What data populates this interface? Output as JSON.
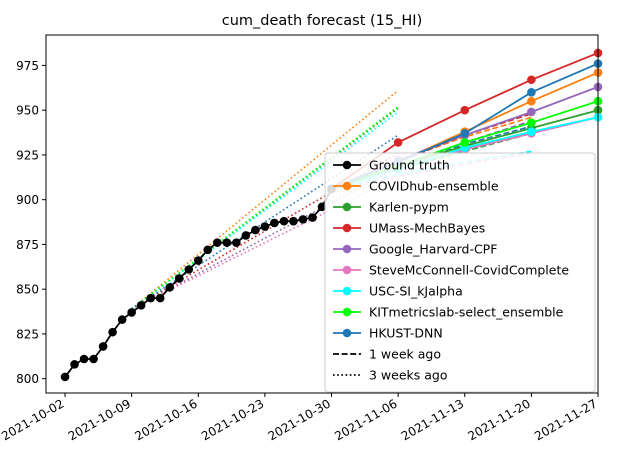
{
  "chart_data": {
    "type": "line",
    "title": "cum_death forecast (15_HI)",
    "xlabel": "",
    "ylabel": "",
    "x_type": "date",
    "xlim": [
      "2021-09-30",
      "2021-11-27"
    ],
    "ylim": [
      792,
      992
    ],
    "x_ticks": [
      "2021-10-02",
      "2021-10-09",
      "2021-10-16",
      "2021-10-23",
      "2021-10-30",
      "2021-11-06",
      "2021-11-13",
      "2021-11-20",
      "2021-11-27"
    ],
    "y_ticks": [
      800,
      825,
      850,
      875,
      900,
      925,
      950,
      975
    ],
    "grid": false,
    "legend_position": "lower-right",
    "ground_truth": {
      "name": "Ground truth",
      "color": "#000000",
      "x": [
        "2021-10-02",
        "2021-10-03",
        "2021-10-04",
        "2021-10-05",
        "2021-10-06",
        "2021-10-07",
        "2021-10-08",
        "2021-10-09",
        "2021-10-10",
        "2021-10-11",
        "2021-10-12",
        "2021-10-13",
        "2021-10-14",
        "2021-10-15",
        "2021-10-16",
        "2021-10-17",
        "2021-10-18",
        "2021-10-19",
        "2021-10-20",
        "2021-10-21",
        "2021-10-22",
        "2021-10-23",
        "2021-10-24",
        "2021-10-25",
        "2021-10-26",
        "2021-10-27",
        "2021-10-28",
        "2021-10-29",
        "2021-10-30"
      ],
      "y": [
        801,
        808,
        811,
        811,
        818,
        826,
        833,
        837,
        841,
        845,
        845,
        851,
        856,
        861,
        866,
        872,
        876,
        876,
        876,
        880,
        883,
        885,
        887,
        888,
        888,
        889,
        890,
        896,
        906
      ]
    },
    "series": [
      {
        "name": "COVIDhub-ensemble",
        "color": "#ff7f0e",
        "x": [
          "2021-10-30",
          "2021-11-06",
          "2021-11-13",
          "2021-11-20",
          "2021-11-27"
        ],
        "y": [
          906,
          921,
          938,
          955,
          971
        ],
        "week1": {
          "x": [
            "2021-10-30",
            "2021-11-06",
            "2021-11-13",
            "2021-11-20"
          ],
          "y": [
            906,
            922,
            935,
            946
          ]
        },
        "week3": {
          "x": [
            "2021-10-09",
            "2021-11-06"
          ],
          "y": [
            839,
            961
          ]
        }
      },
      {
        "name": "Karlen-pypm",
        "color": "#2ca02c",
        "x": [
          "2021-10-30",
          "2021-11-06",
          "2021-11-13",
          "2021-11-20",
          "2021-11-27"
        ],
        "y": [
          906,
          919,
          930,
          940,
          950
        ],
        "week1": {
          "x": [
            "2021-10-30",
            "2021-11-06",
            "2021-11-13",
            "2021-11-20"
          ],
          "y": [
            906,
            917,
            927,
            937
          ]
        },
        "week3": {
          "x": [
            "2021-10-09",
            "2021-11-06"
          ],
          "y": [
            839,
            951
          ]
        }
      },
      {
        "name": "UMass-MechBayes",
        "color": "#d62728",
        "x": [
          "2021-10-30",
          "2021-11-06",
          "2021-11-13",
          "2021-11-20",
          "2021-11-27"
        ],
        "y": [
          906,
          932,
          950,
          967,
          982
        ],
        "week1": {
          "x": [
            "2021-10-30",
            "2021-11-06",
            "2021-11-13",
            "2021-11-20"
          ],
          "y": [
            906,
            921,
            936,
            948
          ]
        },
        "week3": {
          "x": [
            "2021-10-09",
            "2021-11-06"
          ],
          "y": [
            839,
            926
          ]
        }
      },
      {
        "name": "Google_Harvard-CPF",
        "color": "#9467bd",
        "x": [
          "2021-10-30",
          "2021-11-06",
          "2021-11-13",
          "2021-11-20",
          "2021-11-27"
        ],
        "y": [
          906,
          922,
          936,
          949,
          963
        ],
        "week1": {
          "x": [
            "2021-10-30",
            "2021-11-06",
            "2021-11-13",
            "2021-11-20"
          ],
          "y": [
            906,
            919,
            932,
            944
          ]
        },
        "week3": {
          "x": [
            "2021-10-09",
            "2021-11-06"
          ],
          "y": [
            839,
            918
          ]
        }
      },
      {
        "name": "SteveMcConnell-CovidComplete",
        "color": "#e377c2",
        "x": [
          "2021-10-30",
          "2021-11-06",
          "2021-11-13",
          "2021-11-20",
          "2021-11-27"
        ],
        "y": [
          906,
          918,
          928,
          937,
          946
        ],
        "week1": {
          "x": [
            "2021-10-30",
            "2021-11-06",
            "2021-11-13",
            "2021-11-20"
          ],
          "y": [
            906,
            913,
            920,
            926
          ]
        },
        "week3": {
          "x": [
            "2021-10-09",
            "2021-11-06"
          ],
          "y": [
            839,
            913
          ]
        }
      },
      {
        "name": "USC-SI_kJalpha",
        "color": "#00ffff",
        "x": [
          "2021-10-30",
          "2021-11-06",
          "2021-11-13",
          "2021-11-20",
          "2021-11-27"
        ],
        "y": [
          906,
          917,
          929,
          938,
          946
        ],
        "week1": {
          "x": [
            "2021-10-30",
            "2021-11-06",
            "2021-11-13",
            "2021-11-20"
          ],
          "y": [
            906,
            914,
            921,
            927
          ]
        },
        "week3": {
          "x": [
            "2021-10-09",
            "2021-11-06"
          ],
          "y": [
            839,
            949
          ]
        }
      },
      {
        "name": "KITmetricslab-select_ensemble",
        "color": "#00ff00",
        "x": [
          "2021-10-30",
          "2021-11-06",
          "2021-11-13",
          "2021-11-20",
          "2021-11-27"
        ],
        "y": [
          906,
          919,
          932,
          943,
          955
        ],
        "week1": {
          "x": [
            "2021-10-30",
            "2021-11-06",
            "2021-11-13",
            "2021-11-20"
          ],
          "y": [
            906,
            917,
            928,
            938
          ]
        },
        "week3": {
          "x": [
            "2021-10-09",
            "2021-11-06"
          ],
          "y": [
            839,
            952
          ]
        }
      },
      {
        "name": "HKUST-DNN",
        "color": "#1f77b4",
        "x": [
          "2021-10-30",
          "2021-11-06",
          "2021-11-13",
          "2021-11-20",
          "2021-11-27"
        ],
        "y": [
          906,
          921,
          937,
          960,
          976
        ],
        "week1": {
          "x": [
            "2021-10-30",
            "2021-11-06",
            "2021-11-13",
            "2021-11-20"
          ],
          "y": [
            906,
            918,
            931,
            941
          ]
        },
        "week3": {
          "x": [
            "2021-10-09",
            "2021-11-06"
          ],
          "y": [
            839,
            936
          ]
        }
      }
    ],
    "legend_extra": [
      {
        "label": "1 week ago",
        "style": "dashed"
      },
      {
        "label": "3 weeks ago",
        "style": "dotted"
      }
    ]
  }
}
